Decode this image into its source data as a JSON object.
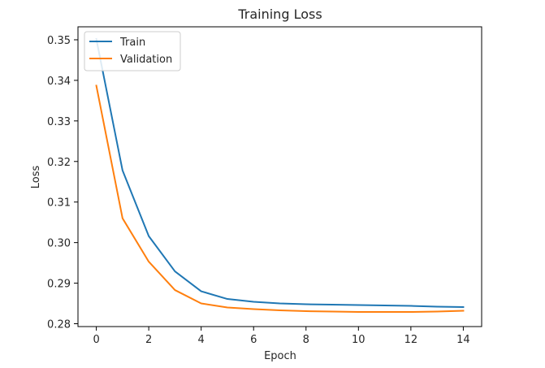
{
  "chart_data": {
    "type": "line",
    "title": "Training Loss",
    "xlabel": "Epoch",
    "ylabel": "Loss",
    "xlim": [
      -0.7,
      14.7
    ],
    "ylim": [
      0.2793,
      0.3532
    ],
    "xticks": [
      0,
      2,
      4,
      6,
      8,
      10,
      12,
      14
    ],
    "yticks": [
      0.28,
      0.29,
      0.3,
      0.31,
      0.32,
      0.33,
      0.34,
      0.35
    ],
    "ytick_labels": [
      "0.28",
      "0.29",
      "0.30",
      "0.31",
      "0.32",
      "0.33",
      "0.34",
      "0.35"
    ],
    "x": [
      0,
      1,
      2,
      3,
      4,
      5,
      6,
      7,
      8,
      9,
      10,
      11,
      12,
      13,
      14
    ],
    "series": [
      {
        "name": "Train",
        "color": "#1f77b4",
        "values": [
          0.3502,
          0.3178,
          0.3016,
          0.2929,
          0.288,
          0.2861,
          0.2854,
          0.285,
          0.2848,
          0.2847,
          0.2846,
          0.2845,
          0.2844,
          0.2842,
          0.2841
        ]
      },
      {
        "name": "Validation",
        "color": "#ff7f0e",
        "values": [
          0.3387,
          0.306,
          0.2953,
          0.2883,
          0.285,
          0.284,
          0.2836,
          0.2833,
          0.2831,
          0.283,
          0.2829,
          0.2829,
          0.2829,
          0.283,
          0.2832
        ]
      }
    ],
    "legend_position": "top-left",
    "grid": false
  }
}
